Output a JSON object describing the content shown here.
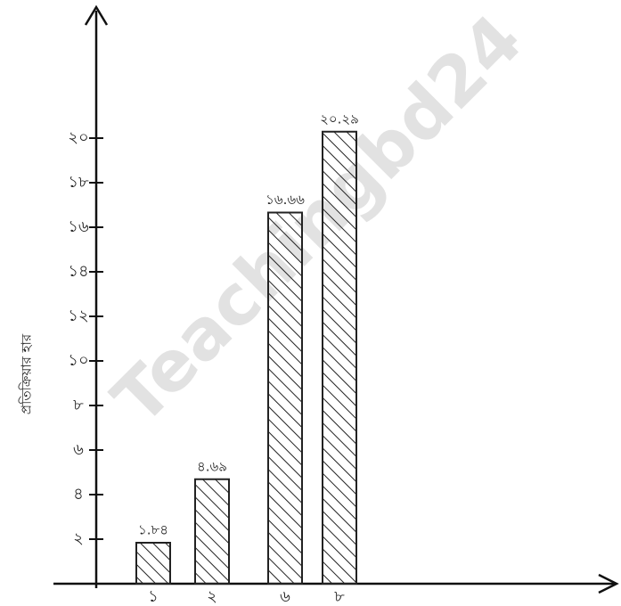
{
  "watermark": "Teachingbd24",
  "chart_data": {
    "type": "bar",
    "y_label": "প্রতিক্রিয়ার হার",
    "categories": [
      "১",
      "২",
      "৬",
      "৮"
    ],
    "values": [
      1.84,
      4.69,
      16.66,
      20.29
    ],
    "value_labels": [
      "১.৮৪",
      "৪.৬৯",
      "১৬.৬৬",
      "২০.২৯"
    ],
    "color": "#222222",
    "ylim": [
      0,
      25
    ],
    "yticks": [
      {
        "value": 2,
        "label": "২"
      },
      {
        "value": 4,
        "label": "৪"
      },
      {
        "value": 6,
        "label": "৬"
      },
      {
        "value": 8,
        "label": "৮"
      },
      {
        "value": 10,
        "label": "১০"
      },
      {
        "value": 12,
        "label": "১২"
      },
      {
        "value": 14,
        "label": "১৪"
      },
      {
        "value": 16,
        "label": "১৬"
      },
      {
        "value": 18,
        "label": "১৮"
      },
      {
        "value": 20,
        "label": "২০"
      }
    ]
  }
}
